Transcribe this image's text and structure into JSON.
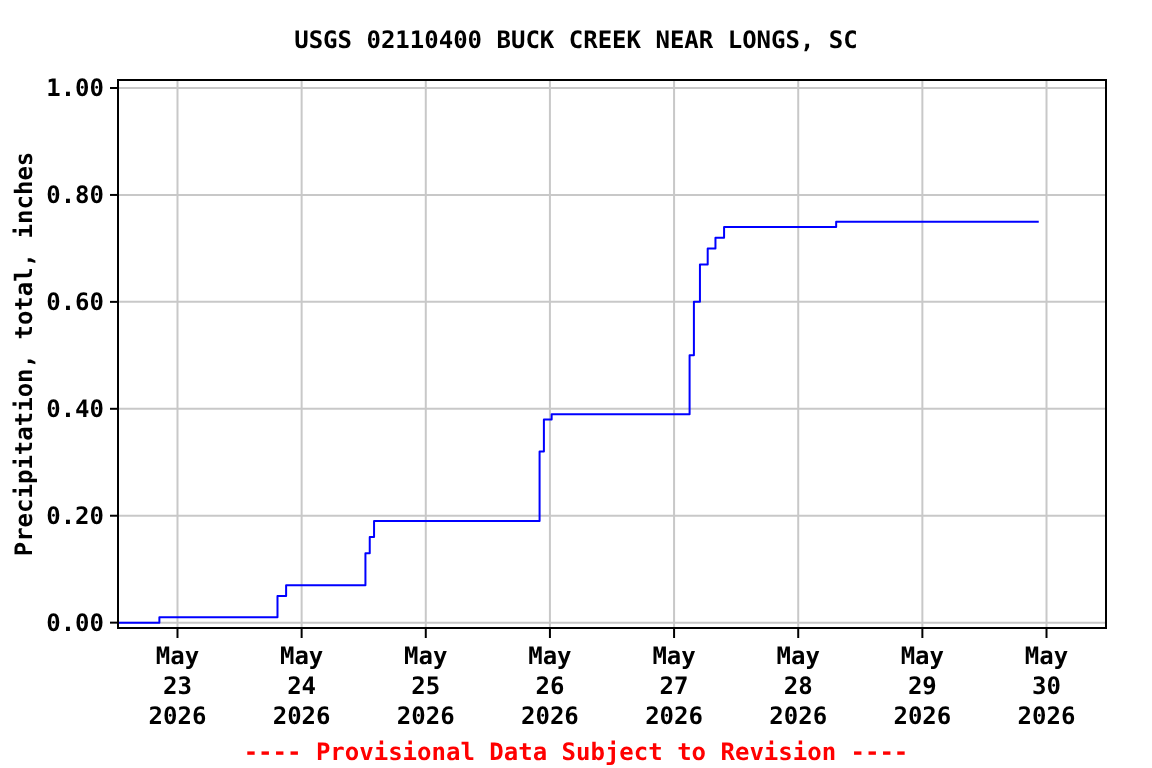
{
  "chart_data": {
    "type": "step",
    "title": "USGS 02110400 BUCK CREEK NEAR LONGS, SC",
    "ylabel": "Precipitation, total, inches",
    "annotations": [
      "---- Provisional Data Subject to Revision ----"
    ],
    "series": [
      {
        "color": "#0000ff",
        "x": [
          "2026-05-22T12:30",
          "2026-05-22T20:30",
          "2026-05-23T19:20",
          "2026-05-23T21:00",
          "2026-05-24T12:20",
          "2026-05-24T13:10",
          "2026-05-24T14:00",
          "2026-05-24T15:00",
          "2026-05-25T22:00",
          "2026-05-25T22:50",
          "2026-05-26T00:20",
          "2026-05-26T01:30",
          "2026-05-27T03:00",
          "2026-05-27T03:50",
          "2026-05-27T05:00",
          "2026-05-27T06:30",
          "2026-05-27T08:00",
          "2026-05-27T09:40",
          "2026-05-27T11:15",
          "2026-05-28T07:20",
          "2026-05-29T22:30"
        ],
        "values": [
          0,
          0.01,
          0.05,
          0.07,
          0.13,
          0.16,
          0.19,
          0.19,
          0.32,
          0.38,
          0.39,
          0.39,
          0.5,
          0.6,
          0.67,
          0.7,
          0.72,
          0.74,
          0.74,
          0.75,
          0.75
        ]
      }
    ],
    "xlim": [
      "2026-05-22T12:30",
      "2026-05-30T11:30"
    ],
    "ylim": [
      -0.01,
      1.015
    ],
    "xticks": [
      {
        "value": "2026-05-23",
        "label": "May\n23\n2026"
      },
      {
        "value": "2026-05-24",
        "label": "May\n24\n2026"
      },
      {
        "value": "2026-05-25",
        "label": "May\n25\n2026"
      },
      {
        "value": "2026-05-26",
        "label": "May\n26\n2026"
      },
      {
        "value": "2026-05-27",
        "label": "May\n27\n2026"
      },
      {
        "value": "2026-05-28",
        "label": "May\n28\n2026"
      },
      {
        "value": "2026-05-29",
        "label": "May\n29\n2026"
      },
      {
        "value": "2026-05-30",
        "label": "May\n30\n2026"
      }
    ],
    "yticks": [
      {
        "value": 0,
        "label": "0.00"
      },
      {
        "value": 0.2,
        "label": "0.20"
      },
      {
        "value": 0.4,
        "label": "0.40"
      },
      {
        "value": 0.6,
        "label": "0.60"
      },
      {
        "value": 0.8,
        "label": "0.80"
      },
      {
        "value": 1,
        "label": "1.00"
      }
    ],
    "grid": true
  }
}
